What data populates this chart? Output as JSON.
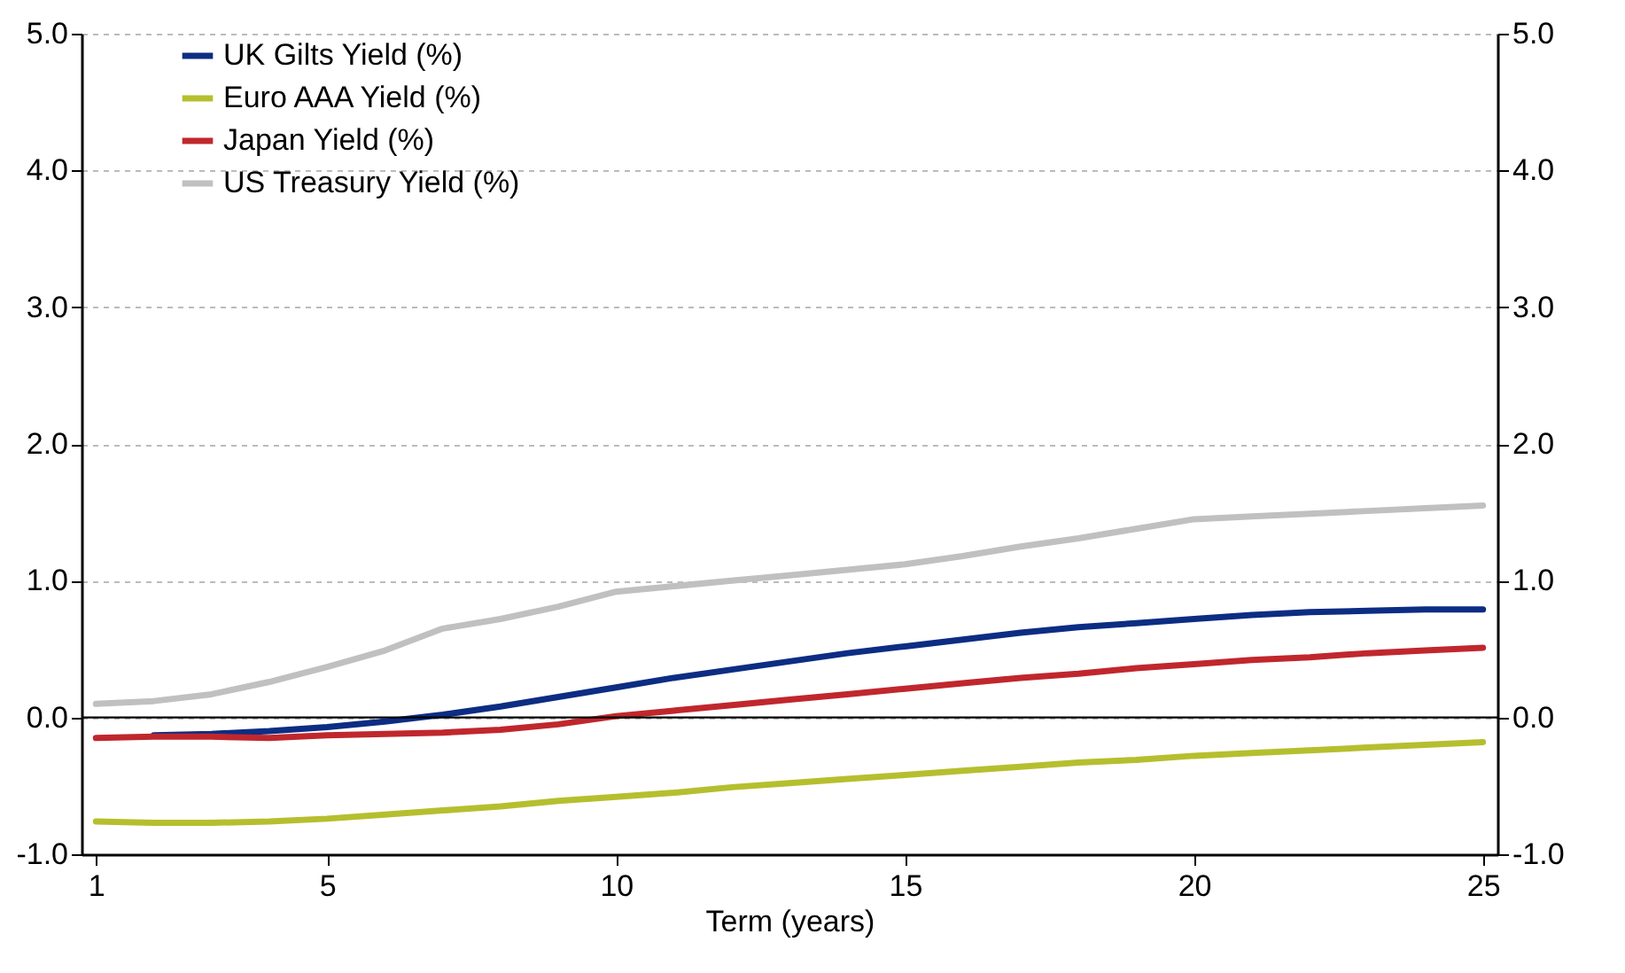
{
  "chart_data": {
    "type": "line",
    "xlabel": "Term (years)",
    "x": [
      1,
      2,
      3,
      4,
      5,
      6,
      7,
      8,
      9,
      10,
      11,
      12,
      13,
      14,
      15,
      16,
      17,
      18,
      19,
      20,
      21,
      22,
      23,
      24,
      25
    ],
    "series": [
      {
        "name": "UK Gilts Yield (%)",
        "color": "#0c2d83",
        "values": [
          null,
          -0.13,
          -0.12,
          -0.1,
          -0.07,
          -0.03,
          0.02,
          0.08,
          0.15,
          0.22,
          0.29,
          0.35,
          0.41,
          0.47,
          0.52,
          0.57,
          0.62,
          0.66,
          0.69,
          0.72,
          0.75,
          0.77,
          0.78,
          0.79,
          0.79
        ]
      },
      {
        "name": "Euro AAA Yield (%)",
        "color": "#b5bf2e",
        "values": [
          -0.76,
          -0.77,
          -0.77,
          -0.76,
          -0.74,
          -0.71,
          -0.68,
          -0.65,
          -0.61,
          -0.58,
          -0.55,
          -0.51,
          -0.48,
          -0.45,
          -0.42,
          -0.39,
          -0.36,
          -0.33,
          -0.31,
          -0.28,
          -0.26,
          -0.24,
          -0.22,
          -0.2,
          -0.18
        ]
      },
      {
        "name": "Japan Yield (%)",
        "color": "#c0272d",
        "values": [
          -0.15,
          -0.14,
          -0.14,
          -0.15,
          -0.13,
          -0.12,
          -0.11,
          -0.09,
          -0.05,
          0.01,
          0.05,
          0.09,
          0.13,
          0.17,
          0.21,
          0.25,
          0.29,
          0.32,
          0.36,
          0.39,
          0.42,
          0.44,
          0.47,
          0.49,
          0.51
        ]
      },
      {
        "name": "US Treasury Yield (%)",
        "color": "#c0c0c0",
        "values": [
          0.1,
          0.12,
          0.17,
          0.26,
          0.37,
          0.49,
          0.65,
          0.72,
          0.81,
          0.92,
          0.96,
          1.0,
          1.04,
          1.08,
          1.12,
          1.18,
          1.25,
          1.31,
          1.38,
          1.45,
          1.47,
          1.49,
          1.51,
          1.53,
          1.55
        ]
      }
    ],
    "xlim": [
      0.75,
      25.25
    ],
    "xticks": [
      1,
      5,
      10,
      15,
      20,
      25
    ],
    "ylim": [
      -1,
      5
    ],
    "yticks": [
      {
        "value": -1,
        "label": "-1.0"
      },
      {
        "value": 0,
        "label": "0.0"
      },
      {
        "value": 1,
        "label": "1.0"
      },
      {
        "value": 2,
        "label": "2.0"
      },
      {
        "value": 3,
        "label": "3.0"
      },
      {
        "value": 4,
        "label": "4.0"
      },
      {
        "value": 5,
        "label": "5.0"
      }
    ],
    "y2lim": [
      -1,
      5
    ],
    "y2ticks": [
      {
        "value": -1,
        "label": "-1.0"
      },
      {
        "value": 0,
        "label": "0.0"
      },
      {
        "value": 1,
        "label": "1.0"
      },
      {
        "value": 2,
        "label": "2.0"
      },
      {
        "value": 3,
        "label": "3.0"
      },
      {
        "value": 4,
        "label": "4.0"
      },
      {
        "value": 5,
        "label": "5.0"
      }
    ],
    "ref_lines": [
      {
        "axis": "y",
        "value": 0,
        "color": "#000000",
        "line_style": "solid"
      }
    ],
    "grid": "y",
    "legend": "top left",
    "marker": "none",
    "line_style": "solid"
  }
}
